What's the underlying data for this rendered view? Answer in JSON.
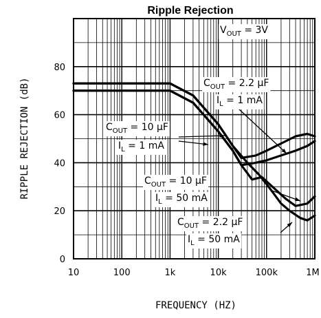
{
  "chart_data": {
    "type": "line",
    "title": "Ripple Rejection",
    "xlabel": "FREQUENCY (HZ)",
    "ylabel": "RIPPLE REJECTION (dB)",
    "x_scale": "log",
    "xlim": [
      10,
      1000000
    ],
    "ylim": [
      0,
      100
    ],
    "grid": true,
    "x_tick_labels": [
      "10",
      "100",
      "1k",
      "10k",
      "100k",
      "1M"
    ],
    "x_tick_values": [
      10,
      100,
      1000,
      10000,
      100000,
      1000000
    ],
    "y_tick_labels": [
      "0",
      "20",
      "40",
      "60",
      "80"
    ],
    "y_tick_values": [
      0,
      20,
      40,
      60,
      80
    ],
    "condition": {
      "text": "V",
      "sub": "OUT",
      "rest": " = 3V"
    },
    "series": [
      {
        "label_line1": {
          "pre": "C",
          "sub": "OUT",
          "post": " = 2.2 μF"
        },
        "label_line2": {
          "pre": "I",
          "sub": "L",
          "post": " = 1 mA"
        },
        "x": [
          10,
          100,
          1000,
          3000,
          10000,
          20000,
          30000,
          60000,
          100000,
          200000,
          400000,
          700000,
          1000000
        ],
        "y": [
          73,
          73,
          73,
          68,
          56,
          47,
          42,
          43,
          45,
          48,
          51,
          52,
          51
        ]
      },
      {
        "label_line1": {
          "pre": "C",
          "sub": "OUT",
          "post": " = 10 μF"
        },
        "label_line2": {
          "pre": "I",
          "sub": "L",
          "post": " = 1 mA"
        },
        "x": [
          10,
          100,
          1000,
          3000,
          10000,
          20000,
          30000,
          60000,
          100000,
          200000,
          400000,
          700000,
          1000000
        ],
        "y": [
          70,
          70,
          70,
          65,
          53,
          45,
          39,
          40,
          41,
          43,
          45,
          47,
          49
        ]
      },
      {
        "label_line1": {
          "pre": "C",
          "sub": "OUT",
          "post": " = 10 μF"
        },
        "label_line2": {
          "pre": "I",
          "sub": "L",
          "post": " = 50 mA"
        },
        "x": [
          10,
          100,
          1000,
          3000,
          10000,
          20000,
          30000,
          50000,
          80000,
          150000,
          250000,
          400000,
          700000,
          1000000
        ],
        "y": [
          70,
          70,
          70,
          65,
          53,
          45,
          39,
          33,
          34,
          29,
          25,
          22,
          23,
          26
        ]
      },
      {
        "label_line1": {
          "pre": "C",
          "sub": "OUT",
          "post": " = 2.2 μF"
        },
        "label_line2": {
          "pre": "I",
          "sub": "L",
          "post": " = 50 mA"
        },
        "x": [
          10,
          100,
          1000,
          3000,
          10000,
          20000,
          40000,
          70000,
          120000,
          200000,
          300000,
          500000,
          700000,
          1000000
        ],
        "y": [
          73,
          73,
          73,
          68,
          56,
          47,
          40,
          35,
          29,
          23,
          20,
          17,
          16,
          18
        ]
      }
    ]
  }
}
